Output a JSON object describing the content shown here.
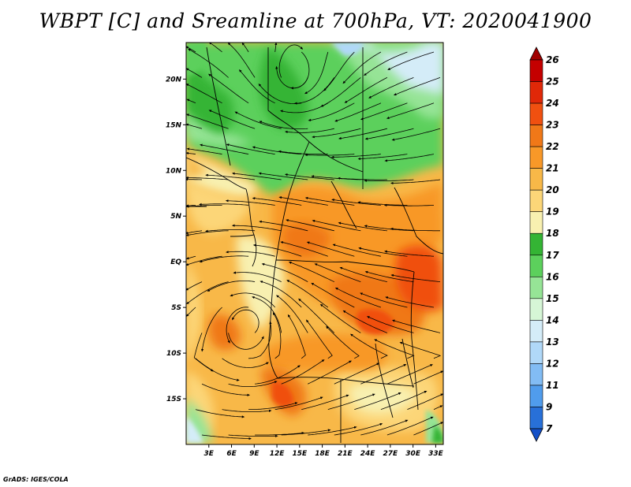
{
  "title": "WBPT [C] and Sreamline at 700hPa, VT: 2020041900",
  "credit": "GrADS: IGES/COLA",
  "map": {
    "lon_ticks": [
      "3E",
      "6E",
      "9E",
      "12E",
      "15E",
      "18E",
      "21E",
      "24E",
      "27E",
      "30E",
      "33E"
    ],
    "lat_ticks": [
      "20N",
      "15N",
      "10N",
      "5N",
      "EQ",
      "5S",
      "10S",
      "15S"
    ],
    "lon_range": [
      0,
      34
    ],
    "lat_range": [
      -20,
      24
    ],
    "field": "wet-bulb potential temperature",
    "overlay": "streamlines"
  },
  "colorbar": {
    "labels": [
      "26",
      "25",
      "24",
      "23",
      "22",
      "21",
      "20",
      "19",
      "18",
      "17",
      "16",
      "15",
      "14",
      "13",
      "12",
      "11",
      "9",
      "7"
    ],
    "colors": [
      "#a00000",
      "#c40000",
      "#e02808",
      "#f05010",
      "#f07818",
      "#f89828",
      "#f8b848",
      "#fcd678",
      "#f8f0b0",
      "#34b434",
      "#5cd05c",
      "#96e496",
      "#d6f6d6",
      "#d4ecf8",
      "#b0d8f8",
      "#82bcf4",
      "#509cec",
      "#2870d8",
      "#1450c8"
    ],
    "palette": {
      "t14": "#b0d8f8",
      "t15": "#d4ecf8",
      "t16": "#96e496",
      "t17": "#5cd05c",
      "t18": "#34b434",
      "t19": "#f8f0b0",
      "t20": "#fcd678",
      "t21": "#f8b848",
      "t22": "#f89828",
      "t23": "#f07818",
      "t24": "#f05010"
    }
  }
}
